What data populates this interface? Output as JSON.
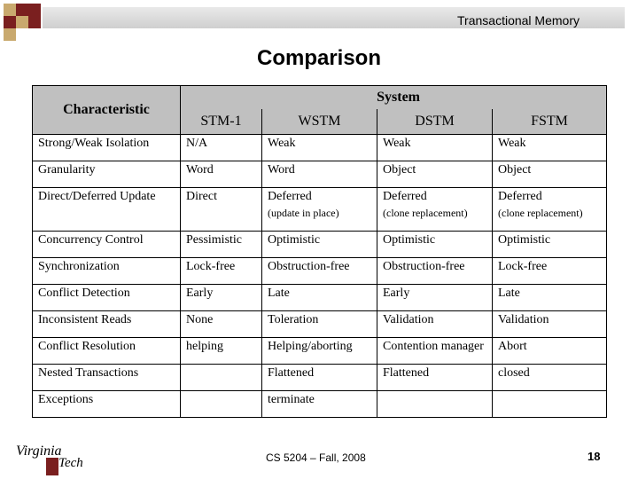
{
  "header": {
    "course_title": "Transactional Memory"
  },
  "slide_title": "Comparison",
  "table": {
    "characteristic_header": "Characteristic",
    "system_header": "System",
    "systems": [
      "STM-1",
      "WSTM",
      "DSTM",
      "FSTM"
    ],
    "rows": [
      {
        "label": "Strong/Weak Isolation",
        "cells": [
          {
            "text": "N/A",
            "note": ""
          },
          {
            "text": "Weak",
            "note": ""
          },
          {
            "text": "Weak",
            "note": ""
          },
          {
            "text": "Weak",
            "note": ""
          }
        ]
      },
      {
        "label": "Granularity",
        "cells": [
          {
            "text": "Word",
            "note": ""
          },
          {
            "text": "Word",
            "note": ""
          },
          {
            "text": "Object",
            "note": ""
          },
          {
            "text": "Object",
            "note": ""
          }
        ]
      },
      {
        "label": "Direct/Deferred Update",
        "cells": [
          {
            "text": "Direct",
            "note": ""
          },
          {
            "text": "Deferred",
            "note": "(update in place)"
          },
          {
            "text": "Deferred",
            "note": "(clone replacement)"
          },
          {
            "text": "Deferred",
            "note": "(clone replacement)"
          }
        ]
      },
      {
        "label": "Concurrency Control",
        "cells": [
          {
            "text": "Pessimistic",
            "note": ""
          },
          {
            "text": "Optimistic",
            "note": ""
          },
          {
            "text": "Optimistic",
            "note": ""
          },
          {
            "text": "Optimistic",
            "note": ""
          }
        ]
      },
      {
        "label": "Synchronization",
        "cells": [
          {
            "text": "Lock-free",
            "note": ""
          },
          {
            "text": "Obstruction-free",
            "note": ""
          },
          {
            "text": "Obstruction-free",
            "note": ""
          },
          {
            "text": "Lock-free",
            "note": ""
          }
        ]
      },
      {
        "label": "Conflict Detection",
        "cells": [
          {
            "text": "Early",
            "note": ""
          },
          {
            "text": "Late",
            "note": ""
          },
          {
            "text": "Early",
            "note": ""
          },
          {
            "text": "Late",
            "note": ""
          }
        ]
      },
      {
        "label": "Inconsistent Reads",
        "cells": [
          {
            "text": "None",
            "note": ""
          },
          {
            "text": "Toleration",
            "note": ""
          },
          {
            "text": "Validation",
            "note": ""
          },
          {
            "text": "Validation",
            "note": ""
          }
        ]
      },
      {
        "label": "Conflict Resolution",
        "cells": [
          {
            "text": "helping",
            "note": ""
          },
          {
            "text": "Helping/aborting",
            "note": ""
          },
          {
            "text": "Contention manager",
            "note": ""
          },
          {
            "text": "Abort",
            "note": ""
          }
        ]
      },
      {
        "label": "Nested Transactions",
        "cells": [
          {
            "text": "",
            "note": ""
          },
          {
            "text": "Flattened",
            "note": ""
          },
          {
            "text": "Flattened",
            "note": ""
          },
          {
            "text": "closed",
            "note": ""
          }
        ]
      },
      {
        "label": "Exceptions",
        "cells": [
          {
            "text": "",
            "note": ""
          },
          {
            "text": "terminate",
            "note": ""
          },
          {
            "text": "",
            "note": ""
          },
          {
            "text": "",
            "note": ""
          }
        ]
      }
    ]
  },
  "logo": {
    "line1": "Virginia",
    "line2": "Tech"
  },
  "footer": {
    "course": "CS 5204 – Fall, 2008",
    "page_number": "18"
  },
  "colors": {
    "accent_dark": "#7a1f1f",
    "accent_tan": "#c9a96e",
    "table_header_bg": "#c0c0c0"
  }
}
